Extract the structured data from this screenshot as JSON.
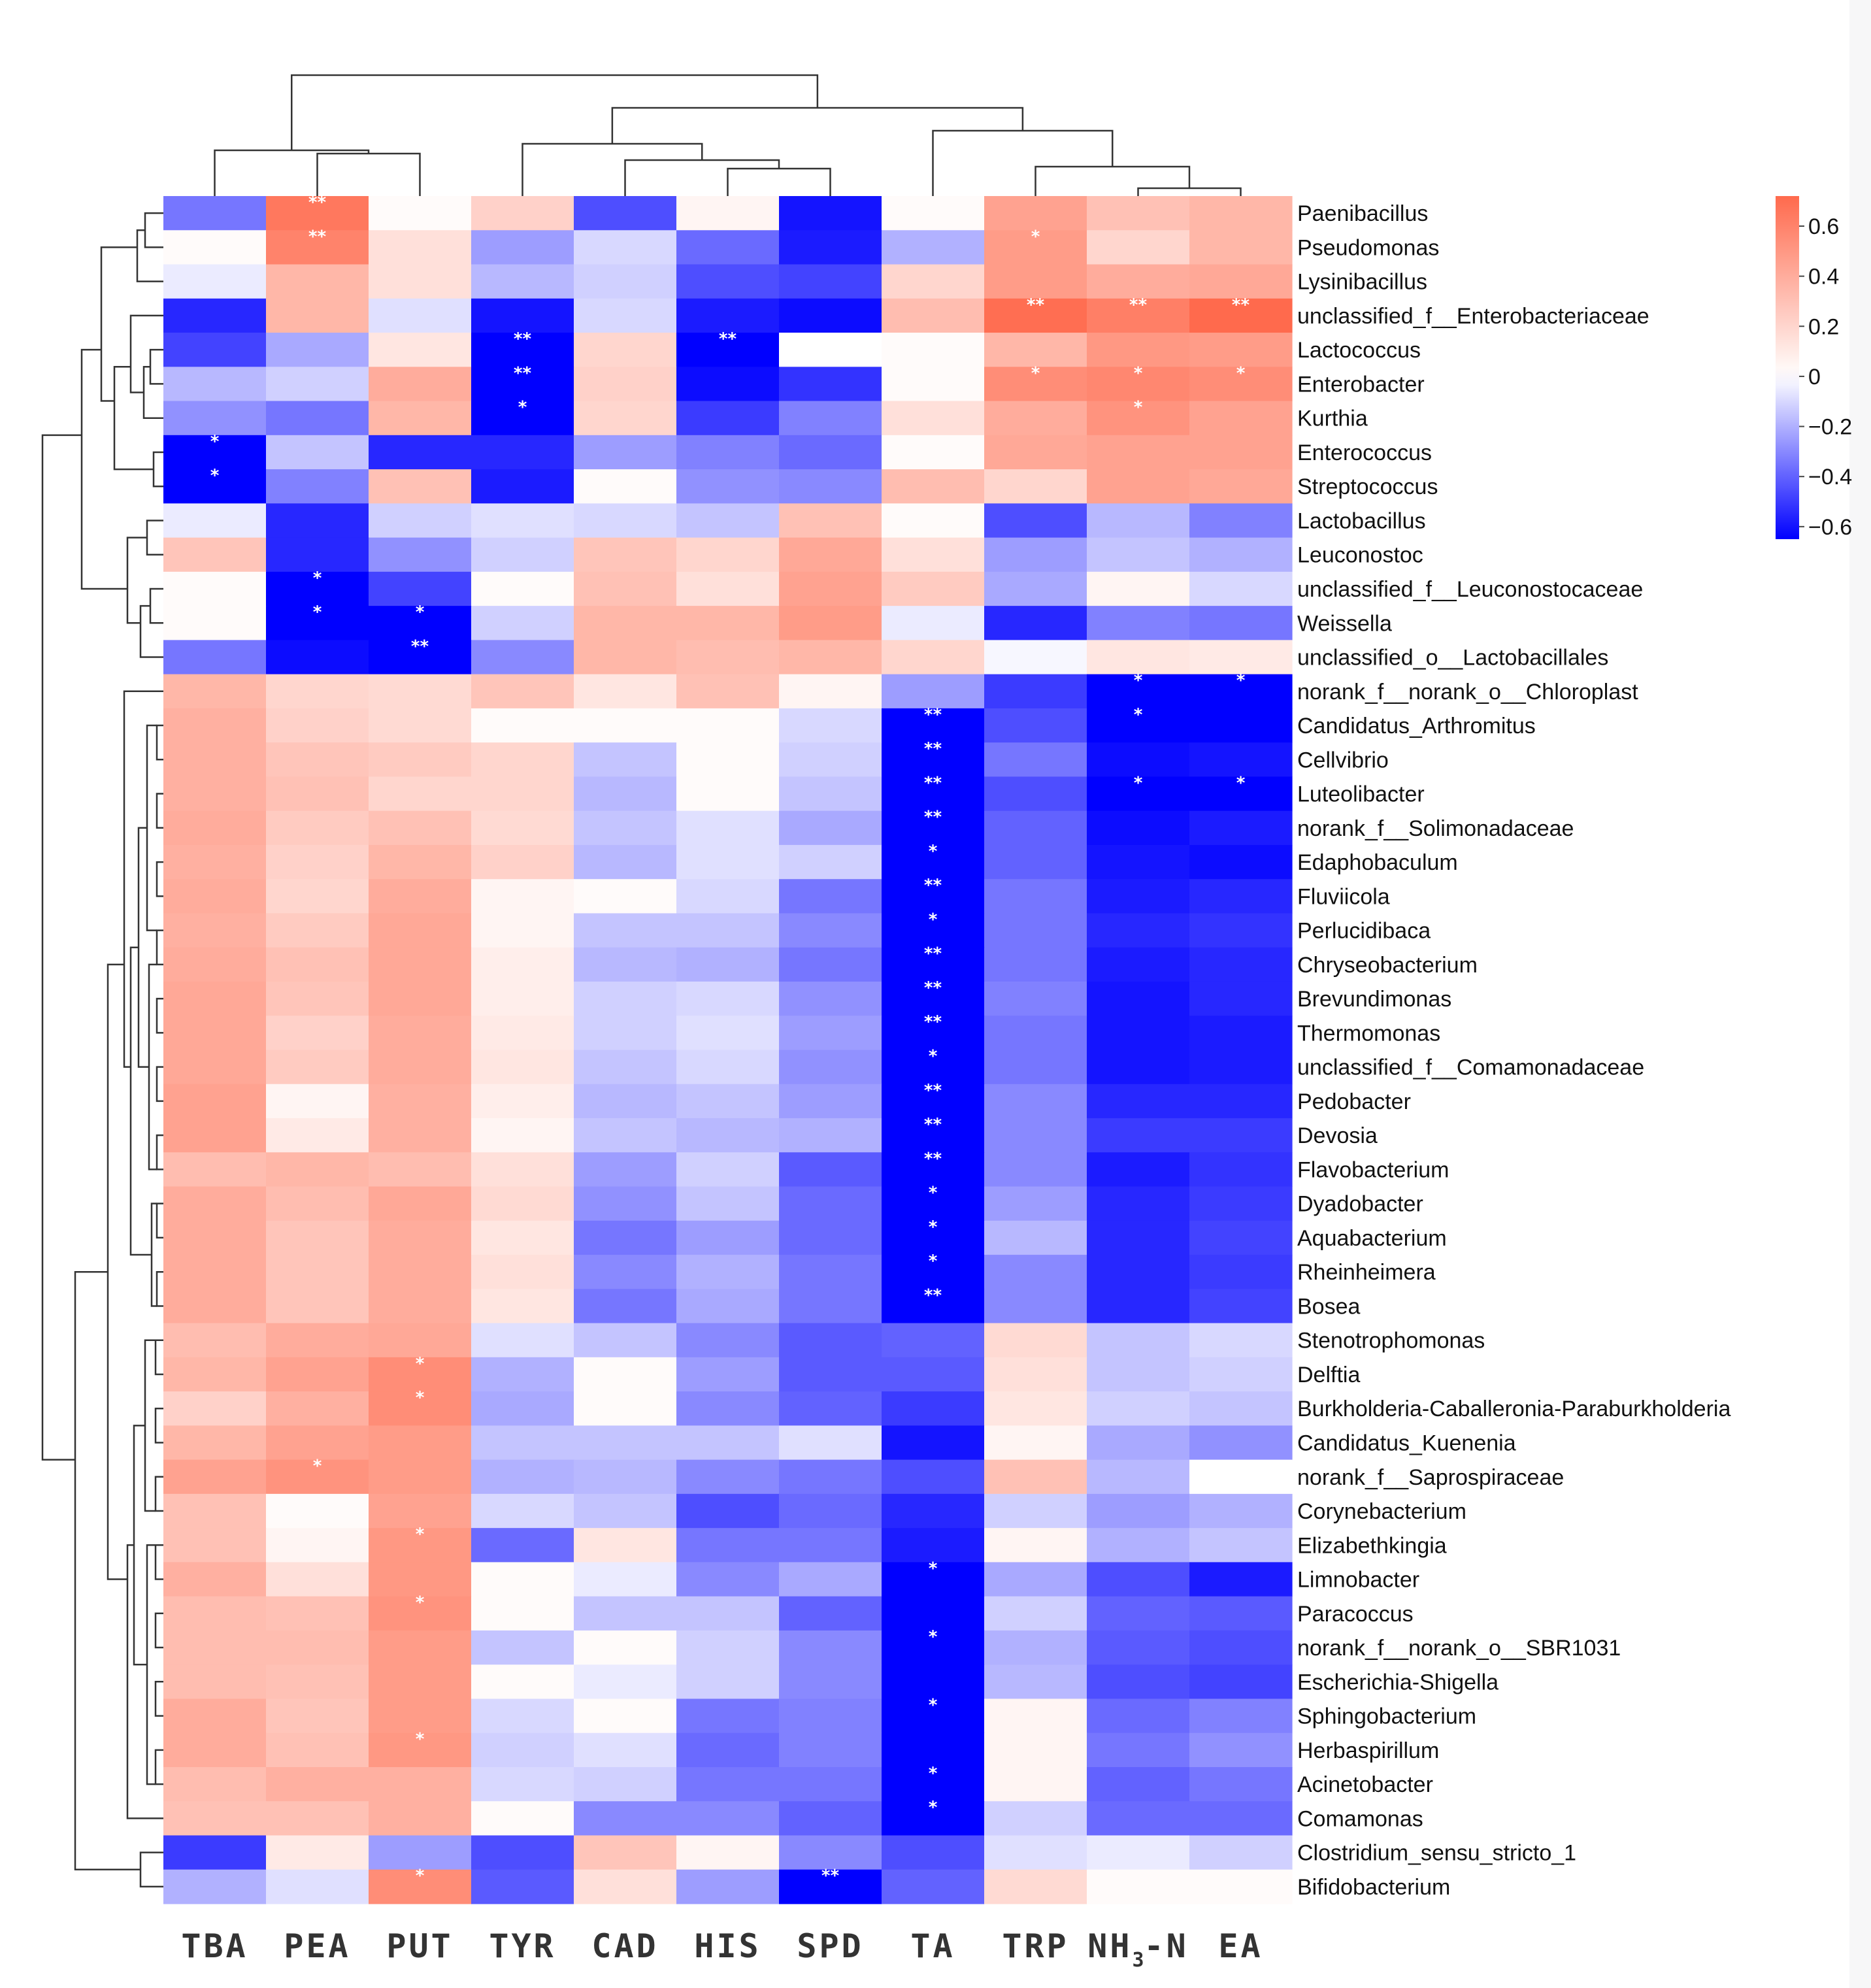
{
  "chart_data": {
    "type": "heatmap",
    "title": "",
    "columns": [
      "TBA",
      "PEA",
      "PUT",
      "TYR",
      "CAD",
      "HIS",
      "SPD",
      "TA",
      "TRP",
      "NH3-N",
      "EA"
    ],
    "column_labels_display": [
      {
        "main": "TBA"
      },
      {
        "main": "PEA"
      },
      {
        "main": "PUT"
      },
      {
        "main": "TYR"
      },
      {
        "main": "CAD"
      },
      {
        "main": "HIS"
      },
      {
        "main": "SPD"
      },
      {
        "main": "TA"
      },
      {
        "main": "TRP"
      },
      {
        "main": "NH",
        "sub": "3",
        "tail": "-N"
      },
      {
        "main": "EA"
      }
    ],
    "rows": [
      "Paenibacillus",
      "Pseudomonas",
      "Lysinibacillus",
      "unclassified_f__Enterobacteriaceae",
      "Lactococcus",
      "Enterobacter",
      "Kurthia",
      "Enterococcus",
      "Streptococcus",
      "Lactobacillus",
      "Leuconostoc",
      "unclassified_f__Leuconostocaceae",
      "Weissella",
      "unclassified_o__Lactobacillales",
      "norank_f__norank_o__Chloroplast",
      "Candidatus_Arthromitus",
      "Cellvibrio",
      "Luteolibacter",
      "norank_f__Solimonadaceae",
      "Edaphobaculum",
      "Fluviicola",
      "Perlucidibaca",
      "Chryseobacterium",
      "Brevundimonas",
      "Thermomonas",
      "unclassified_f__Comamonadaceae",
      "Pedobacter",
      "Devosia",
      "Flavobacterium",
      "Dyadobacter",
      "Aquabacterium",
      "Rheinheimera",
      "Bosea",
      "Stenotrophomonas",
      "Delftia",
      "Burkholderia-Caballeronia-Paraburkholderia",
      "Candidatus_Kuenenia",
      "norank_f__Saprospiraceae",
      "Corynebacterium",
      "Elizabethkingia",
      "Limnobacter",
      "Paracoccus",
      "norank_f__norank_o__SBR1031",
      "Escherichia-Shigella",
      "Sphingobacterium",
      "Herbaspirillum",
      "Acinetobacter",
      "Comamonas",
      "Clostridium_sensu_stricto_1",
      "Bifidobacterium"
    ],
    "values": [
      [
        -0.35,
        0.65,
        0.02,
        0.22,
        -0.45,
        0.05,
        -0.6,
        0.02,
        0.45,
        0.3,
        0.35
      ],
      [
        0.02,
        0.6,
        0.15,
        -0.25,
        -0.1,
        -0.38,
        -0.58,
        -0.2,
        0.48,
        0.2,
        0.35
      ],
      [
        -0.05,
        0.35,
        0.15,
        -0.18,
        -0.12,
        -0.45,
        -0.48,
        0.2,
        0.48,
        0.4,
        0.42
      ],
      [
        -0.55,
        0.35,
        -0.08,
        -0.6,
        -0.1,
        -0.58,
        -0.62,
        0.32,
        0.7,
        0.62,
        0.72
      ],
      [
        -0.48,
        -0.22,
        0.12,
        -0.95,
        0.2,
        -0.95,
        0.0,
        0.02,
        0.35,
        0.5,
        0.48
      ],
      [
        -0.18,
        -0.12,
        0.4,
        -0.95,
        0.22,
        -0.62,
        -0.52,
        0.02,
        0.55,
        0.58,
        0.55
      ],
      [
        -0.28,
        -0.35,
        0.35,
        -0.85,
        0.2,
        -0.5,
        -0.32,
        0.15,
        0.4,
        0.52,
        0.45
      ],
      [
        -0.8,
        -0.15,
        -0.55,
        -0.55,
        -0.25,
        -0.32,
        -0.38,
        0.02,
        0.42,
        0.45,
        0.45
      ],
      [
        -0.78,
        -0.32,
        0.3,
        -0.58,
        0.02,
        -0.28,
        -0.3,
        0.32,
        0.2,
        0.45,
        0.42
      ],
      [
        -0.05,
        -0.55,
        -0.12,
        -0.08,
        -0.1,
        -0.15,
        0.3,
        0.02,
        -0.45,
        -0.18,
        -0.32
      ],
      [
        0.28,
        -0.55,
        -0.28,
        -0.12,
        0.28,
        0.2,
        0.42,
        0.15,
        -0.25,
        -0.15,
        -0.2
      ],
      [
        0.02,
        -0.75,
        -0.48,
        0.02,
        0.3,
        0.15,
        0.45,
        0.25,
        -0.22,
        0.05,
        -0.1
      ],
      [
        0.02,
        -0.7,
        -0.7,
        -0.12,
        0.35,
        0.35,
        0.48,
        -0.05,
        -0.55,
        -0.32,
        -0.35
      ],
      [
        -0.35,
        -0.62,
        -0.85,
        -0.3,
        0.35,
        0.32,
        0.35,
        0.2,
        -0.02,
        0.12,
        0.1
      ],
      [
        0.35,
        0.2,
        0.18,
        0.28,
        0.12,
        0.3,
        0.05,
        -0.25,
        -0.5,
        -0.68,
        -0.72
      ],
      [
        0.38,
        0.22,
        0.18,
        0.02,
        0.02,
        0.02,
        -0.1,
        -0.95,
        -0.45,
        -0.72,
        -0.65
      ],
      [
        0.38,
        0.28,
        0.25,
        0.2,
        -0.15,
        0.02,
        -0.12,
        -0.95,
        -0.35,
        -0.62,
        -0.6
      ],
      [
        0.38,
        0.3,
        0.2,
        0.2,
        -0.18,
        0.02,
        -0.15,
        -0.95,
        -0.45,
        -0.7,
        -0.68
      ],
      [
        0.4,
        0.25,
        0.3,
        0.18,
        -0.15,
        -0.08,
        -0.22,
        -0.95,
        -0.4,
        -0.62,
        -0.58
      ],
      [
        0.38,
        0.22,
        0.35,
        0.22,
        -0.18,
        -0.08,
        -0.12,
        -0.88,
        -0.4,
        -0.6,
        -0.62
      ],
      [
        0.4,
        0.2,
        0.4,
        0.05,
        0.02,
        -0.1,
        -0.35,
        -0.95,
        -0.35,
        -0.58,
        -0.55
      ],
      [
        0.38,
        0.25,
        0.42,
        0.05,
        -0.15,
        -0.15,
        -0.3,
        -0.9,
        -0.35,
        -0.55,
        -0.52
      ],
      [
        0.4,
        0.3,
        0.42,
        0.08,
        -0.18,
        -0.2,
        -0.35,
        -0.95,
        -0.35,
        -0.58,
        -0.55
      ],
      [
        0.42,
        0.28,
        0.42,
        0.08,
        -0.12,
        -0.1,
        -0.28,
        -0.95,
        -0.32,
        -0.6,
        -0.55
      ],
      [
        0.42,
        0.22,
        0.4,
        0.1,
        -0.12,
        -0.08,
        -0.25,
        -0.95,
        -0.35,
        -0.6,
        -0.58
      ],
      [
        0.42,
        0.25,
        0.4,
        0.12,
        -0.15,
        -0.1,
        -0.28,
        -0.9,
        -0.35,
        -0.6,
        -0.58
      ],
      [
        0.45,
        0.05,
        0.38,
        0.08,
        -0.18,
        -0.15,
        -0.25,
        -0.95,
        -0.3,
        -0.55,
        -0.55
      ],
      [
        0.45,
        0.1,
        0.38,
        0.05,
        -0.15,
        -0.18,
        -0.2,
        -0.95,
        -0.3,
        -0.5,
        -0.5
      ],
      [
        0.32,
        0.35,
        0.32,
        0.15,
        -0.25,
        -0.12,
        -0.42,
        -0.97,
        -0.3,
        -0.58,
        -0.52
      ],
      [
        0.4,
        0.32,
        0.42,
        0.18,
        -0.28,
        -0.15,
        -0.38,
        -0.85,
        -0.25,
        -0.55,
        -0.5
      ],
      [
        0.4,
        0.28,
        0.4,
        0.12,
        -0.35,
        -0.25,
        -0.38,
        -0.85,
        -0.18,
        -0.55,
        -0.48
      ],
      [
        0.4,
        0.28,
        0.4,
        0.15,
        -0.3,
        -0.2,
        -0.35,
        -0.85,
        -0.3,
        -0.55,
        -0.5
      ],
      [
        0.4,
        0.28,
        0.4,
        0.12,
        -0.35,
        -0.22,
        -0.35,
        -0.85,
        -0.3,
        -0.55,
        -0.48
      ],
      [
        0.32,
        0.4,
        0.42,
        -0.08,
        -0.15,
        -0.3,
        -0.42,
        -0.4,
        0.18,
        -0.15,
        -0.1
      ],
      [
        0.35,
        0.45,
        0.55,
        -0.2,
        0.02,
        -0.25,
        -0.42,
        -0.42,
        0.15,
        -0.15,
        -0.12
      ],
      [
        0.22,
        0.38,
        0.55,
        -0.22,
        0.02,
        -0.3,
        -0.4,
        -0.5,
        0.12,
        -0.12,
        -0.15
      ],
      [
        0.35,
        0.45,
        0.48,
        -0.15,
        -0.15,
        -0.15,
        -0.08,
        -0.6,
        0.05,
        -0.22,
        -0.28
      ],
      [
        0.45,
        0.52,
        0.48,
        -0.2,
        -0.18,
        -0.3,
        -0.35,
        -0.45,
        0.3,
        -0.18,
        0.0
      ],
      [
        0.3,
        0.02,
        0.45,
        -0.1,
        -0.15,
        -0.45,
        -0.38,
        -0.55,
        -0.12,
        -0.25,
        -0.2
      ],
      [
        0.3,
        0.05,
        0.5,
        -0.38,
        0.12,
        -0.35,
        -0.35,
        -0.58,
        0.05,
        -0.2,
        -0.15
      ],
      [
        0.38,
        0.15,
        0.5,
        0.02,
        -0.05,
        -0.3,
        -0.22,
        -0.85,
        -0.22,
        -0.45,
        -0.58
      ],
      [
        0.32,
        0.3,
        0.52,
        0.02,
        -0.15,
        -0.15,
        -0.4,
        -0.68,
        -0.12,
        -0.4,
        -0.42
      ],
      [
        0.32,
        0.32,
        0.48,
        -0.15,
        0.02,
        -0.12,
        -0.3,
        -0.85,
        -0.2,
        -0.42,
        -0.45
      ],
      [
        0.32,
        0.3,
        0.48,
        0.02,
        -0.05,
        -0.12,
        -0.3,
        -0.7,
        -0.18,
        -0.45,
        -0.48
      ],
      [
        0.4,
        0.28,
        0.48,
        -0.1,
        0.02,
        -0.35,
        -0.32,
        -0.9,
        0.05,
        -0.38,
        -0.32
      ],
      [
        0.4,
        0.3,
        0.5,
        -0.12,
        -0.08,
        -0.38,
        -0.32,
        -0.65,
        0.05,
        -0.35,
        -0.28
      ],
      [
        0.32,
        0.38,
        0.38,
        -0.1,
        -0.12,
        -0.35,
        -0.35,
        -0.85,
        0.05,
        -0.4,
        -0.35
      ],
      [
        0.3,
        0.3,
        0.38,
        0.02,
        -0.3,
        -0.3,
        -0.4,
        -0.88,
        -0.12,
        -0.38,
        -0.38
      ],
      [
        -0.5,
        0.1,
        -0.25,
        -0.45,
        0.28,
        0.05,
        -0.3,
        -0.45,
        -0.08,
        -0.05,
        -0.12
      ],
      [
        -0.2,
        -0.08,
        0.55,
        -0.42,
        0.15,
        -0.25,
        -0.95,
        -0.4,
        0.18,
        0.02,
        0.02
      ]
    ],
    "significance": [
      [
        "",
        "**",
        "",
        "",
        "",
        "",
        "",
        "",
        "",
        "",
        ""
      ],
      [
        "",
        "**",
        "",
        "",
        "",
        "",
        "",
        "",
        "*",
        "",
        ""
      ],
      [
        "",
        "",
        "",
        "",
        "",
        "",
        "",
        "",
        "",
        "",
        ""
      ],
      [
        "",
        "",
        "",
        "",
        "",
        "",
        "",
        "",
        "**",
        "**",
        "**"
      ],
      [
        "",
        "",
        "",
        "**",
        "",
        "**",
        "",
        "",
        "",
        "",
        ""
      ],
      [
        "",
        "",
        "",
        "**",
        "",
        "",
        "",
        "",
        "*",
        "*",
        "*"
      ],
      [
        "",
        "",
        "",
        "*",
        "",
        "",
        "",
        "",
        "",
        "*",
        ""
      ],
      [
        "*",
        "",
        "",
        "",
        "",
        "",
        "",
        "",
        "",
        "",
        ""
      ],
      [
        "*",
        "",
        "",
        "",
        "",
        "",
        "",
        "",
        "",
        "",
        ""
      ],
      [
        "",
        "",
        "",
        "",
        "",
        "",
        "",
        "",
        "",
        "",
        ""
      ],
      [
        "",
        "",
        "",
        "",
        "",
        "",
        "",
        "",
        "",
        "",
        ""
      ],
      [
        "",
        "*",
        "",
        "",
        "",
        "",
        "",
        "",
        "",
        "",
        ""
      ],
      [
        "",
        "*",
        "*",
        "",
        "",
        "",
        "",
        "",
        "",
        "",
        ""
      ],
      [
        "",
        "",
        "**",
        "",
        "",
        "",
        "",
        "",
        "",
        "",
        ""
      ],
      [
        "",
        "",
        "",
        "",
        "",
        "",
        "",
        "",
        "",
        "*",
        "*"
      ],
      [
        "",
        "",
        "",
        "",
        "",
        "",
        "",
        "**",
        "",
        "*",
        ""
      ],
      [
        "",
        "",
        "",
        "",
        "",
        "",
        "",
        "**",
        "",
        "",
        ""
      ],
      [
        "",
        "",
        "",
        "",
        "",
        "",
        "",
        "**",
        "",
        "*",
        "*"
      ],
      [
        "",
        "",
        "",
        "",
        "",
        "",
        "",
        "**",
        "",
        "",
        ""
      ],
      [
        "",
        "",
        "",
        "",
        "",
        "",
        "",
        "*",
        "",
        "",
        ""
      ],
      [
        "",
        "",
        "",
        "",
        "",
        "",
        "",
        "**",
        "",
        "",
        ""
      ],
      [
        "",
        "",
        "",
        "",
        "",
        "",
        "",
        "*",
        "",
        "",
        ""
      ],
      [
        "",
        "",
        "",
        "",
        "",
        "",
        "",
        "**",
        "",
        "",
        ""
      ],
      [
        "",
        "",
        "",
        "",
        "",
        "",
        "",
        "**",
        "",
        "",
        ""
      ],
      [
        "",
        "",
        "",
        "",
        "",
        "",
        "",
        "**",
        "",
        "",
        ""
      ],
      [
        "",
        "",
        "",
        "",
        "",
        "",
        "",
        "*",
        "",
        "",
        ""
      ],
      [
        "",
        "",
        "",
        "",
        "",
        "",
        "",
        "**",
        "",
        "",
        ""
      ],
      [
        "",
        "",
        "",
        "",
        "",
        "",
        "",
        "**",
        "",
        "",
        ""
      ],
      [
        "",
        "",
        "",
        "",
        "",
        "",
        "",
        "**",
        "",
        "",
        ""
      ],
      [
        "",
        "",
        "",
        "",
        "",
        "",
        "",
        "*",
        "",
        "",
        ""
      ],
      [
        "",
        "",
        "",
        "",
        "",
        "",
        "",
        "*",
        "",
        "",
        ""
      ],
      [
        "",
        "",
        "",
        "",
        "",
        "",
        "",
        "*",
        "",
        "",
        ""
      ],
      [
        "",
        "",
        "",
        "",
        "",
        "",
        "",
        "**",
        "",
        "",
        ""
      ],
      [
        "",
        "",
        "",
        "",
        "",
        "",
        "",
        "",
        "",
        "",
        ""
      ],
      [
        "",
        "",
        "*",
        "",
        "",
        "",
        "",
        "",
        "",
        "",
        ""
      ],
      [
        "",
        "",
        "*",
        "",
        "",
        "",
        "",
        "",
        "",
        "",
        ""
      ],
      [
        "",
        "",
        "",
        "",
        "",
        "",
        "",
        "",
        "",
        "",
        ""
      ],
      [
        "",
        "*",
        "",
        "",
        "",
        "",
        "",
        "",
        "",
        "",
        ""
      ],
      [
        "",
        "",
        "",
        "",
        "",
        "",
        "",
        "",
        "",
        "",
        ""
      ],
      [
        "",
        "",
        "*",
        "",
        "",
        "",
        "",
        "",
        "",
        "",
        ""
      ],
      [
        "",
        "",
        "",
        "",
        "",
        "",
        "",
        "*",
        "",
        "",
        ""
      ],
      [
        "",
        "",
        "*",
        "",
        "",
        "",
        "",
        "",
        "",
        "",
        ""
      ],
      [
        "",
        "",
        "",
        "",
        "",
        "",
        "",
        "*",
        "",
        "",
        ""
      ],
      [
        "",
        "",
        "",
        "",
        "",
        "",
        "",
        "",
        "",
        "",
        ""
      ],
      [
        "",
        "",
        "",
        "",
        "",
        "",
        "",
        "*",
        "",
        "",
        ""
      ],
      [
        "",
        "",
        "*",
        "",
        "",
        "",
        "",
        "",
        "",
        "",
        ""
      ],
      [
        "",
        "",
        "",
        "",
        "",
        "",
        "",
        "*",
        "",
        "",
        ""
      ],
      [
        "",
        "",
        "",
        "",
        "",
        "",
        "",
        "*",
        "",
        "",
        ""
      ],
      [
        "",
        "",
        "",
        "",
        "",
        "",
        "",
        "",
        "",
        "",
        ""
      ],
      [
        "",
        "",
        "*",
        "",
        "",
        "",
        "**",
        "",
        "",
        "",
        ""
      ]
    ],
    "color_scale": {
      "min": -0.65,
      "max": 0.72,
      "low_color": "#0000ff",
      "mid_color": "#ffffff",
      "high_color": "#ff6a4d",
      "ticks": [
        0.6,
        0.4,
        0.2,
        0,
        -0.2,
        -0.4,
        -0.6
      ],
      "tick_labels": [
        "0.6",
        "0.4",
        "0.2",
        "0",
        "−0.2",
        "−0.4",
        "−0.6"
      ]
    }
  }
}
